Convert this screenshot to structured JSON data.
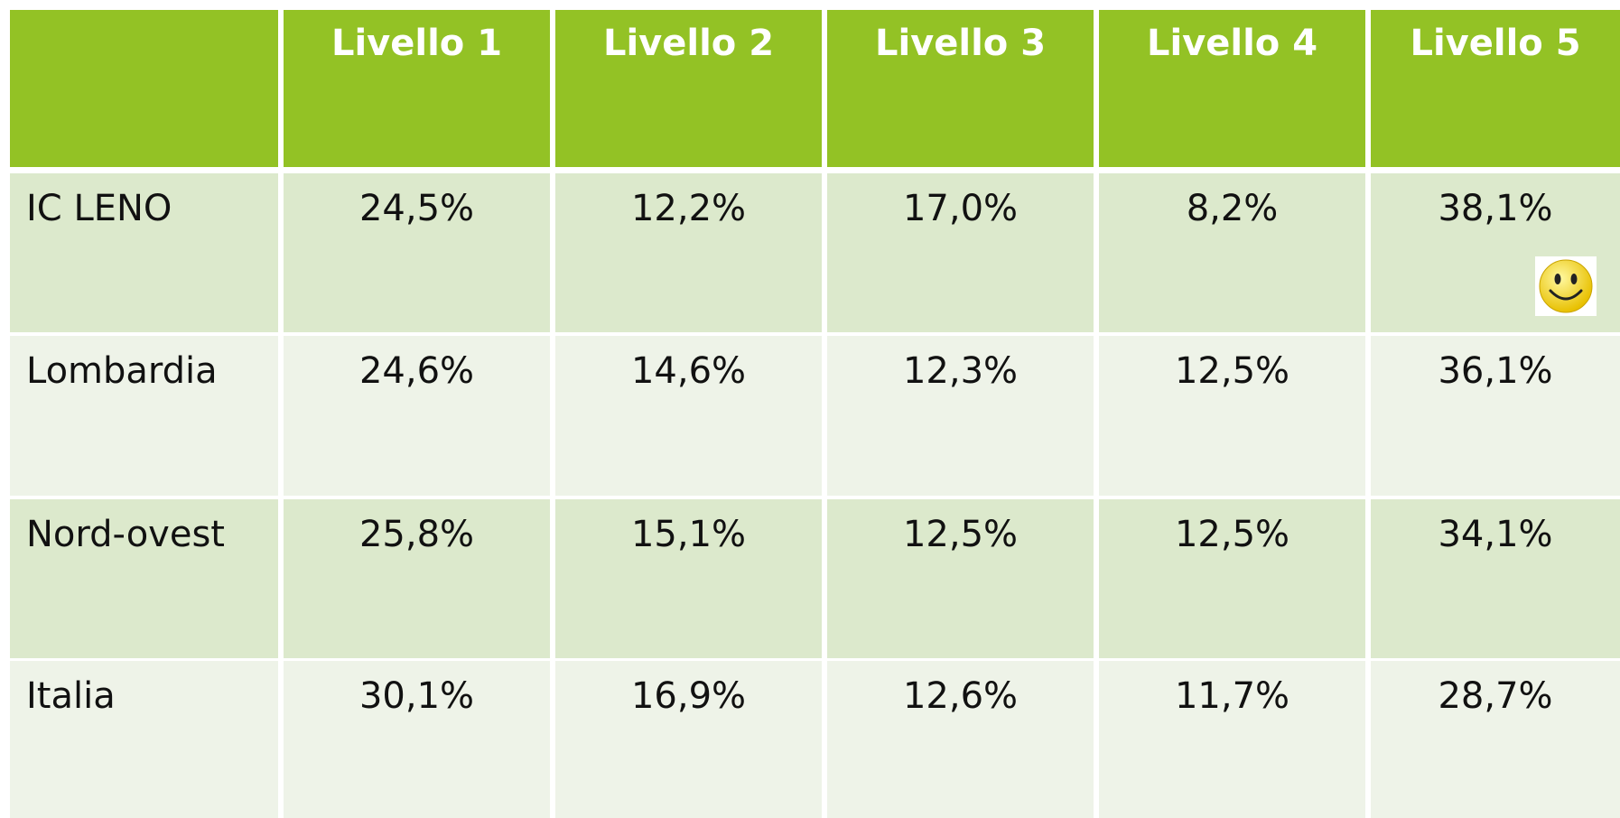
{
  "table": {
    "header": [
      "Livello 1",
      "Livello 2",
      "Livello 3",
      "Livello 4",
      "Livello 5"
    ],
    "rows": [
      [
        "IC LENO",
        "24,5%",
        "12,2%",
        "17,0%",
        "8,2%",
        "38,1%"
      ],
      [
        "Lombardia",
        "24,6%",
        "14,6%",
        "12,3%",
        "12,5%",
        "36,1%"
      ],
      [
        "Nord-ovest",
        "25,8%",
        "15,1%",
        "12,5%",
        "12,5%",
        "34,1%"
      ],
      [
        "Italia",
        "30,1%",
        "16,9%",
        "12,6%",
        "11,7%",
        "28,7%"
      ]
    ]
  }
}
